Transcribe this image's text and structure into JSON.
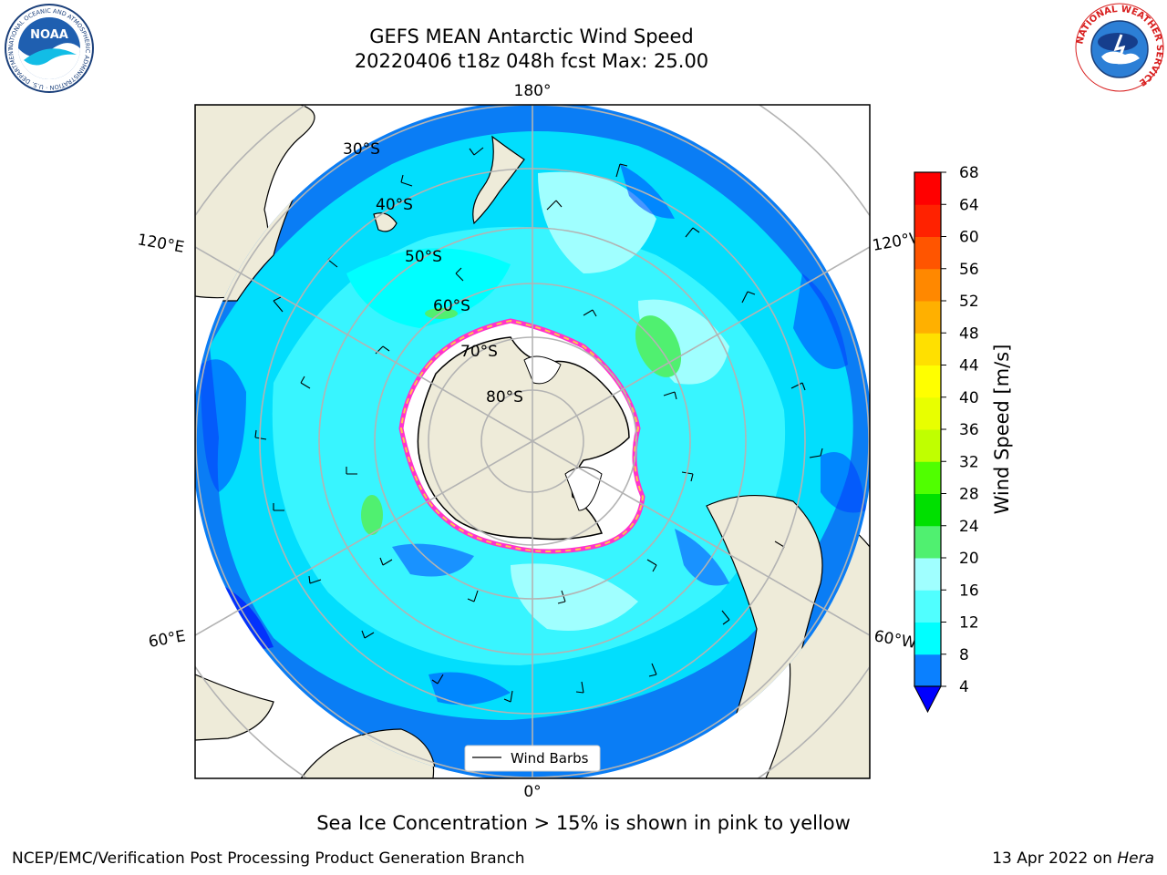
{
  "header": {
    "title_line1": "GEFS MEAN Antarctic Wind Speed",
    "title_line2": "20220406 t18z 048h fcst   Max: 25.00",
    "left_logo_text": "NOAA",
    "left_logo_ring": "NATIONAL OCEANIC AND ATMOSPHERIC ADMINISTRATION · U.S. DEPARTMENT OF COMMERCE",
    "right_logo_ring": "NATIONAL WEATHER SERVICE"
  },
  "map": {
    "projection": "south polar stereographic",
    "lon_labels": {
      "top": "180°",
      "bottom": "0°",
      "upper_left": "120°E",
      "upper_right": "120°W",
      "lower_left": "60°E",
      "lower_right": "60°W"
    },
    "lat_labels": [
      "30°S",
      "40°S",
      "50°S",
      "60°S",
      "70°S",
      "80°S"
    ],
    "legend_label": "Wind Barbs",
    "colors": {
      "land": "#eeebd9",
      "grid": "#b3b3b3",
      "ocean_low": "#0a7df5",
      "ice_edge": "#ff33cc",
      "ice_inner": "#ffc34d"
    }
  },
  "colorbar": {
    "label": "Wind Speed [m/s]",
    "ticks": [
      "4",
      "8",
      "12",
      "16",
      "20",
      "24",
      "28",
      "32",
      "36",
      "40",
      "44",
      "48",
      "52",
      "56",
      "60",
      "64",
      "68"
    ],
    "colors": [
      "#0040ff",
      "#0a80ff",
      "#00ffff",
      "#50ffff",
      "#a0ffff",
      "#50f070",
      "#00e000",
      "#50ff00",
      "#c0ff00",
      "#e8ff00",
      "#ffff00",
      "#ffe000",
      "#ffb000",
      "#ff8800",
      "#ff5500",
      "#ff2200",
      "#ff0000"
    ],
    "under_color": "#0000ff"
  },
  "caption": "Sea Ice Concentration > 15% is shown in pink to yellow",
  "footer": {
    "left": "NCEP/EMC/Verification Post Processing Product Generation Branch",
    "right_date": "13 Apr 2022 on ",
    "right_host": "Hera"
  }
}
